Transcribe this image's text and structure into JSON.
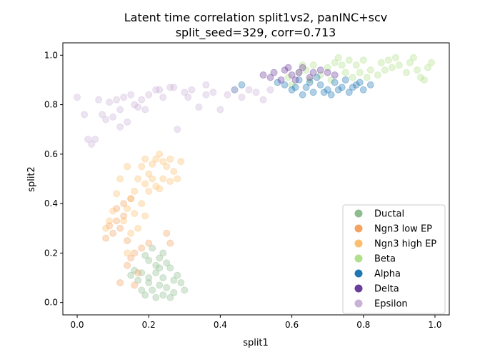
{
  "chart_data": {
    "type": "scatter",
    "title": "Latent time correlation split1vs2, panINC+scv",
    "subtitle": "split_seed=329, corr=0.713",
    "xlabel": "split1",
    "ylabel": "split2",
    "xlim": [
      -0.04,
      1.04
    ],
    "ylim": [
      -0.05,
      1.05
    ],
    "xticks": [
      "0.0",
      "0.2",
      "0.4",
      "0.6",
      "0.8",
      "1.0"
    ],
    "yticks": [
      "0.0",
      "0.2",
      "0.4",
      "0.6",
      "0.8",
      "1.0"
    ],
    "legend_position": "lower-right",
    "grid": false,
    "marker_alpha": 0.35,
    "series": [
      {
        "name": "Ductal",
        "color": "#8fbc8f",
        "points": [
          [
            0.18,
            0.12
          ],
          [
            0.2,
            0.08
          ],
          [
            0.22,
            0.15
          ],
          [
            0.24,
            0.1
          ],
          [
            0.21,
            0.05
          ],
          [
            0.23,
            0.18
          ],
          [
            0.25,
            0.06
          ],
          [
            0.19,
            0.03
          ],
          [
            0.26,
            0.14
          ],
          [
            0.22,
            0.02
          ],
          [
            0.17,
            0.09
          ],
          [
            0.28,
            0.11
          ],
          [
            0.24,
            0.2
          ],
          [
            0.2,
            0.17
          ],
          [
            0.27,
            0.04
          ],
          [
            0.16,
            0.13
          ],
          [
            0.29,
            0.08
          ],
          [
            0.21,
            0.22
          ],
          [
            0.25,
            0.16
          ],
          [
            0.23,
            0.07
          ],
          [
            0.18,
            0.05
          ],
          [
            0.3,
            0.05
          ],
          [
            0.15,
            0.11
          ],
          [
            0.26,
            0.02
          ],
          [
            0.22,
            0.12
          ],
          [
            0.2,
            0.1
          ],
          [
            0.24,
            0.03
          ],
          [
            0.19,
            0.19
          ],
          [
            0.27,
            0.09
          ],
          [
            0.23,
            0.14
          ]
        ]
      },
      {
        "name": "Ngn3 low EP",
        "color": "#f4a460",
        "points": [
          [
            0.12,
            0.3
          ],
          [
            0.14,
            0.25
          ],
          [
            0.16,
            0.2
          ],
          [
            0.13,
            0.35
          ],
          [
            0.1,
            0.28
          ],
          [
            0.15,
            0.18
          ],
          [
            0.17,
            0.12
          ],
          [
            0.18,
            0.22
          ],
          [
            0.11,
            0.33
          ],
          [
            0.14,
            0.15
          ],
          [
            0.12,
            0.08
          ],
          [
            0.09,
            0.31
          ],
          [
            0.16,
            0.07
          ],
          [
            0.2,
            0.24
          ],
          [
            0.08,
            0.26
          ],
          [
            0.26,
            0.24
          ],
          [
            0.25,
            0.28
          ],
          [
            0.13,
            0.4
          ],
          [
            0.15,
            0.42
          ],
          [
            0.11,
            0.38
          ]
        ]
      },
      {
        "name": "Ngn3 high EP",
        "color": "#fdbf6f",
        "points": [
          [
            0.18,
            0.55
          ],
          [
            0.2,
            0.52
          ],
          [
            0.22,
            0.58
          ],
          [
            0.24,
            0.5
          ],
          [
            0.19,
            0.48
          ],
          [
            0.16,
            0.45
          ],
          [
            0.15,
            0.42
          ],
          [
            0.14,
            0.38
          ],
          [
            0.17,
            0.5
          ],
          [
            0.21,
            0.56
          ],
          [
            0.25,
            0.55
          ],
          [
            0.27,
            0.53
          ],
          [
            0.23,
            0.6
          ],
          [
            0.26,
            0.58
          ],
          [
            0.14,
            0.55
          ],
          [
            0.12,
            0.5
          ],
          [
            0.13,
            0.33
          ],
          [
            0.15,
            0.28
          ],
          [
            0.18,
            0.4
          ],
          [
            0.2,
            0.45
          ],
          [
            0.28,
            0.5
          ],
          [
            0.29,
            0.57
          ],
          [
            0.22,
            0.47
          ],
          [
            0.16,
            0.36
          ],
          [
            0.19,
            0.58
          ],
          [
            0.24,
            0.57
          ],
          [
            0.11,
            0.44
          ],
          [
            0.1,
            0.37
          ],
          [
            0.17,
            0.3
          ],
          [
            0.21,
            0.5
          ],
          [
            0.26,
            0.49
          ],
          [
            0.09,
            0.33
          ],
          [
            0.08,
            0.3
          ],
          [
            0.14,
            0.2
          ],
          [
            0.19,
            0.35
          ],
          [
            0.23,
            0.46
          ]
        ]
      },
      {
        "name": "Beta",
        "color": "#b2df8a",
        "points": [
          [
            0.7,
            0.95
          ],
          [
            0.72,
            0.97
          ],
          [
            0.75,
            0.93
          ],
          [
            0.78,
            0.96
          ],
          [
            0.8,
            0.98
          ],
          [
            0.82,
            0.94
          ],
          [
            0.85,
            0.97
          ],
          [
            0.88,
            0.95
          ],
          [
            0.9,
            0.96
          ],
          [
            0.93,
            0.97
          ],
          [
            0.95,
            0.94
          ],
          [
            0.98,
            0.95
          ],
          [
            0.68,
            0.92
          ],
          [
            0.65,
            0.9
          ],
          [
            0.62,
            0.93
          ],
          [
            0.6,
            0.88
          ],
          [
            0.73,
            0.99
          ],
          [
            0.77,
            0.91
          ],
          [
            0.84,
            0.92
          ],
          [
            0.92,
            0.93
          ],
          [
            0.96,
            0.91
          ],
          [
            0.99,
            0.97
          ],
          [
            0.66,
            0.96
          ],
          [
            0.71,
            0.9
          ],
          [
            0.79,
            0.93
          ],
          [
            0.87,
            0.98
          ],
          [
            0.94,
            0.99
          ],
          [
            0.59,
            0.91
          ],
          [
            0.63,
            0.96
          ],
          [
            0.74,
            0.96
          ],
          [
            0.81,
            0.91
          ],
          [
            0.86,
            0.94
          ],
          [
            0.97,
            0.9
          ],
          [
            0.76,
            0.98
          ],
          [
            0.89,
            0.99
          ],
          [
            0.64,
            0.94
          ]
        ]
      },
      {
        "name": "Alpha",
        "color": "#1f77b4",
        "points": [
          [
            0.58,
            0.88
          ],
          [
            0.6,
            0.86
          ],
          [
            0.62,
            0.9
          ],
          [
            0.64,
            0.87
          ],
          [
            0.66,
            0.85
          ],
          [
            0.68,
            0.88
          ],
          [
            0.7,
            0.86
          ],
          [
            0.72,
            0.89
          ],
          [
            0.74,
            0.87
          ],
          [
            0.76,
            0.85
          ],
          [
            0.78,
            0.88
          ],
          [
            0.8,
            0.86
          ],
          [
            0.63,
            0.84
          ],
          [
            0.67,
            0.91
          ],
          [
            0.71,
            0.84
          ],
          [
            0.75,
            0.9
          ],
          [
            0.56,
            0.89
          ],
          [
            0.69,
            0.85
          ],
          [
            0.73,
            0.86
          ],
          [
            0.77,
            0.87
          ],
          [
            0.61,
            0.87
          ],
          [
            0.65,
            0.89
          ],
          [
            0.79,
            0.89
          ],
          [
            0.82,
            0.88
          ],
          [
            0.46,
            0.88
          ],
          [
            0.44,
            0.86
          ]
        ]
      },
      {
        "name": "Delta",
        "color": "#6a3d9a",
        "points": [
          [
            0.52,
            0.92
          ],
          [
            0.55,
            0.93
          ],
          [
            0.58,
            0.94
          ],
          [
            0.6,
            0.92
          ],
          [
            0.62,
            0.93
          ],
          [
            0.65,
            0.91
          ],
          [
            0.68,
            0.94
          ],
          [
            0.7,
            0.93
          ],
          [
            0.72,
            0.92
          ],
          [
            0.57,
            0.9
          ],
          [
            0.63,
            0.95
          ],
          [
            0.54,
            0.91
          ],
          [
            0.66,
            0.93
          ],
          [
            0.59,
            0.95
          ],
          [
            0.61,
            0.9
          ]
        ]
      },
      {
        "name": "Epsilon",
        "color": "#cab2d6",
        "points": [
          [
            0.0,
            0.83
          ],
          [
            0.02,
            0.76
          ],
          [
            0.03,
            0.66
          ],
          [
            0.04,
            0.64
          ],
          [
            0.06,
            0.82
          ],
          [
            0.07,
            0.76
          ],
          [
            0.08,
            0.74
          ],
          [
            0.09,
            0.81
          ],
          [
            0.1,
            0.75
          ],
          [
            0.11,
            0.82
          ],
          [
            0.12,
            0.78
          ],
          [
            0.13,
            0.83
          ],
          [
            0.14,
            0.73
          ],
          [
            0.15,
            0.84
          ],
          [
            0.16,
            0.8
          ],
          [
            0.18,
            0.82
          ],
          [
            0.19,
            0.78
          ],
          [
            0.2,
            0.84
          ],
          [
            0.22,
            0.86
          ],
          [
            0.24,
            0.83
          ],
          [
            0.26,
            0.87
          ],
          [
            0.28,
            0.7
          ],
          [
            0.3,
            0.85
          ],
          [
            0.32,
            0.86
          ],
          [
            0.34,
            0.79
          ],
          [
            0.36,
            0.84
          ],
          [
            0.38,
            0.85
          ],
          [
            0.4,
            0.78
          ],
          [
            0.42,
            0.84
          ],
          [
            0.44,
            0.86
          ],
          [
            0.46,
            0.83
          ],
          [
            0.48,
            0.86
          ],
          [
            0.5,
            0.85
          ],
          [
            0.52,
            0.82
          ],
          [
            0.54,
            0.86
          ],
          [
            0.36,
            0.88
          ],
          [
            0.31,
            0.83
          ],
          [
            0.27,
            0.87
          ],
          [
            0.23,
            0.86
          ],
          [
            0.17,
            0.79
          ],
          [
            0.05,
            0.66
          ],
          [
            0.12,
            0.71
          ]
        ]
      }
    ]
  }
}
